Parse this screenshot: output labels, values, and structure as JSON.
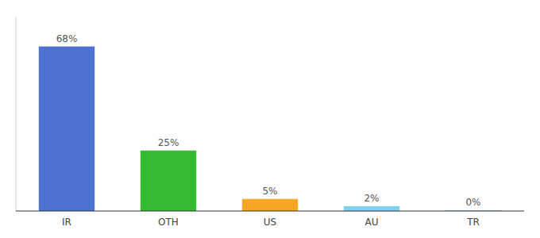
{
  "chart_data": {
    "type": "bar",
    "categories": [
      "IR",
      "OTH",
      "US",
      "AU",
      "TR"
    ],
    "values": [
      68,
      25,
      5,
      2,
      0.3
    ],
    "value_labels": [
      "68%",
      "25%",
      "5%",
      "2%",
      "0%"
    ],
    "colors": [
      "#4d72d1",
      "#33bb33",
      "#f5a623",
      "#7ecff0",
      "#7ecff0"
    ],
    "ylim": [
      0,
      80
    ],
    "data_labels": true,
    "tick_labels": "x",
    "grid": false
  }
}
